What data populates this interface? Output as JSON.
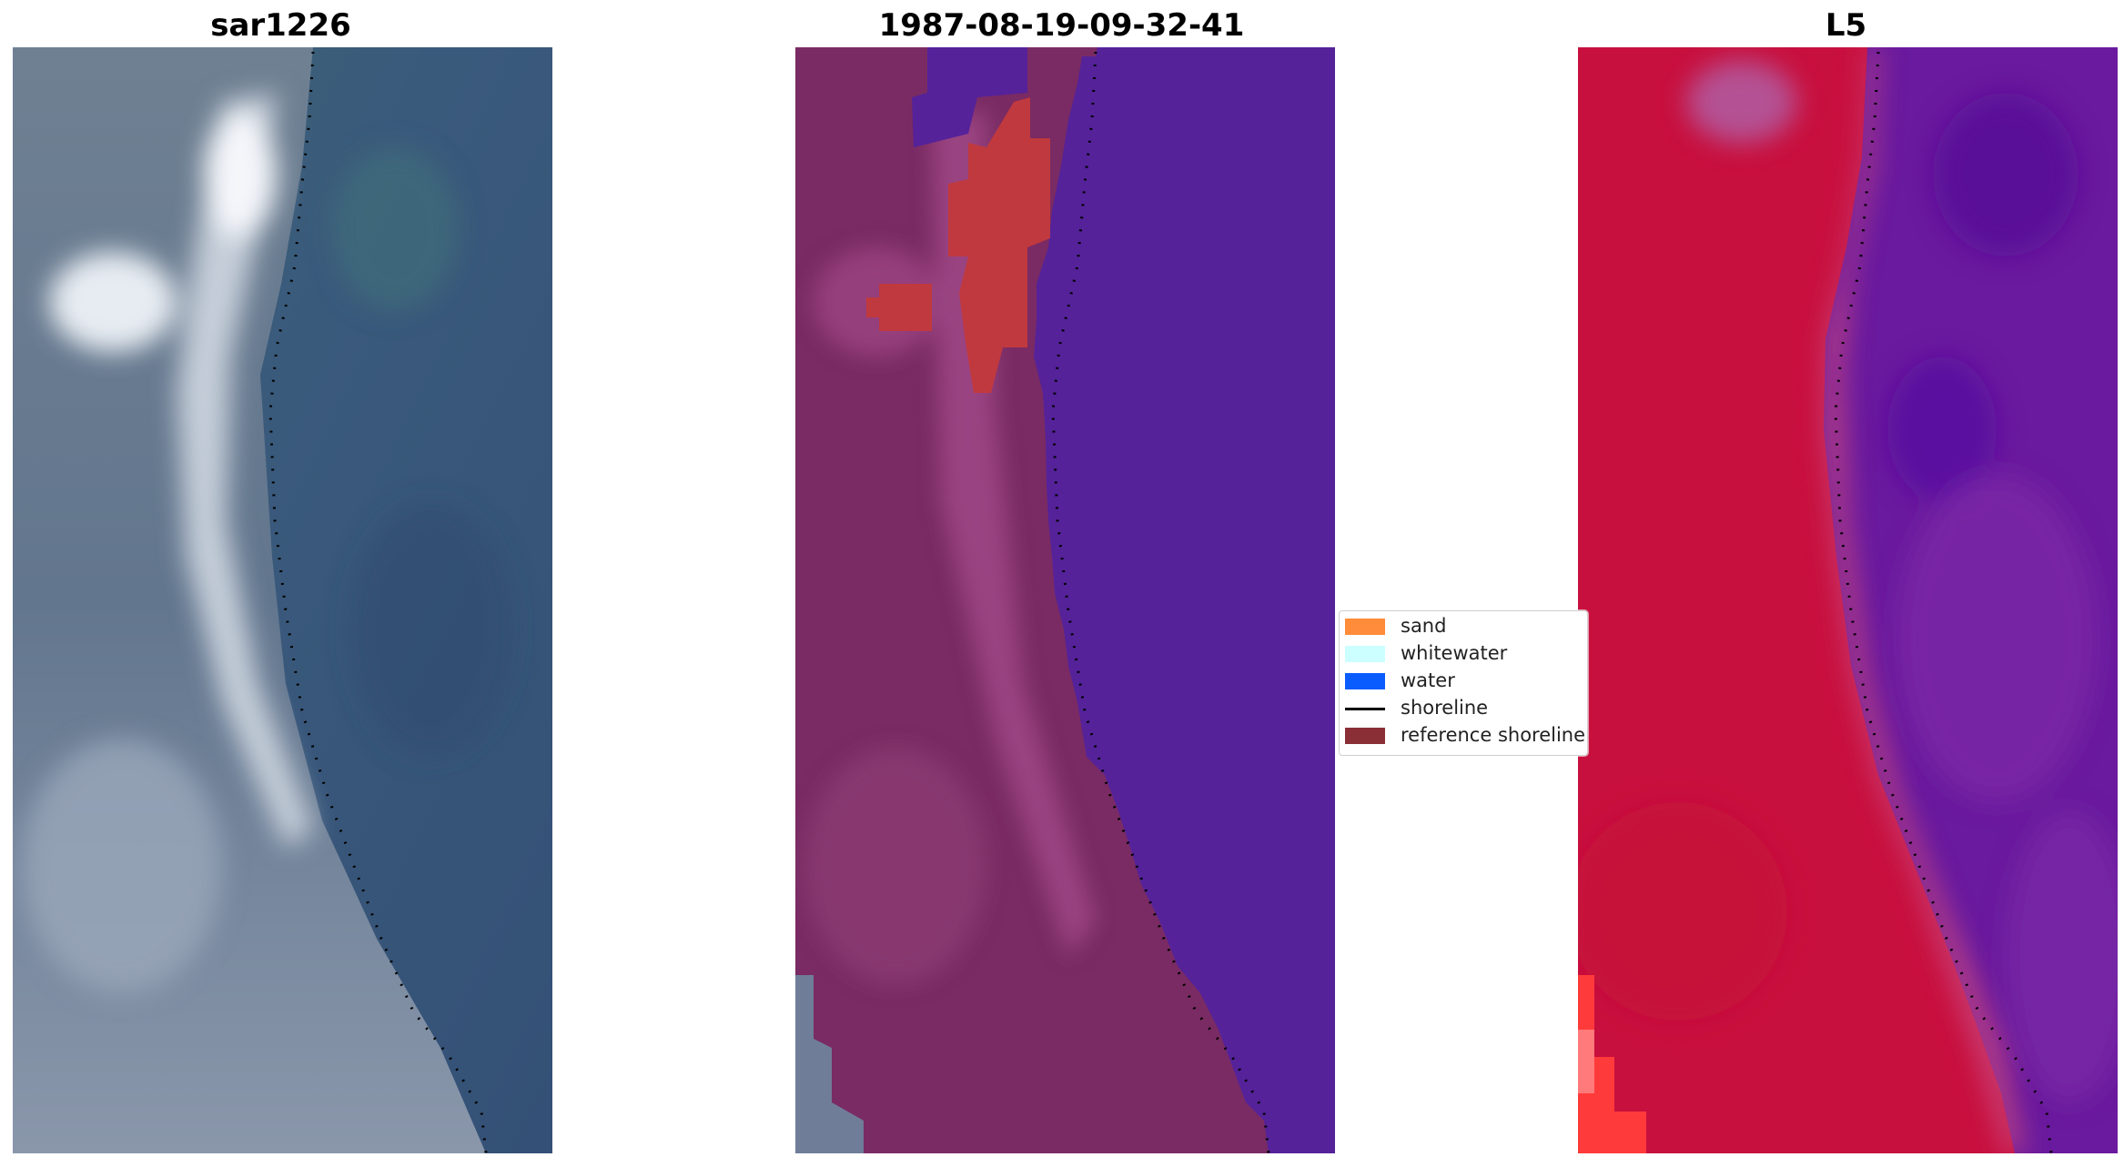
{
  "panels": {
    "left": {
      "title": "sar1226"
    },
    "middle": {
      "title": "1987-08-19-09-32-41"
    },
    "right": {
      "title": "L5"
    }
  },
  "legend": {
    "items": [
      {
        "label": "sand",
        "color": "#ff8c3a",
        "kind": "patch"
      },
      {
        "label": "whitewater",
        "color": "#ccffff",
        "kind": "patch"
      },
      {
        "label": "water",
        "color": "#0a5cff",
        "kind": "patch"
      },
      {
        "label": "shoreline",
        "color": "#000000",
        "kind": "line"
      },
      {
        "label": "reference shoreline",
        "color": "#8b2f37",
        "kind": "patch"
      }
    ]
  },
  "colors": {
    "rgb_water": "#3b5477",
    "rgb_land": "#6e7f96",
    "rgb_bright": "#e9edf2",
    "class_land": "#7a2b63",
    "class_land_light": "#a14b8a",
    "class_water": "#55229a",
    "class_sand_overlay": "#c0393f",
    "mndwi_land": "#c8103e",
    "mndwi_water": "#6a1a9e",
    "shoreline_dots": "#000000"
  }
}
